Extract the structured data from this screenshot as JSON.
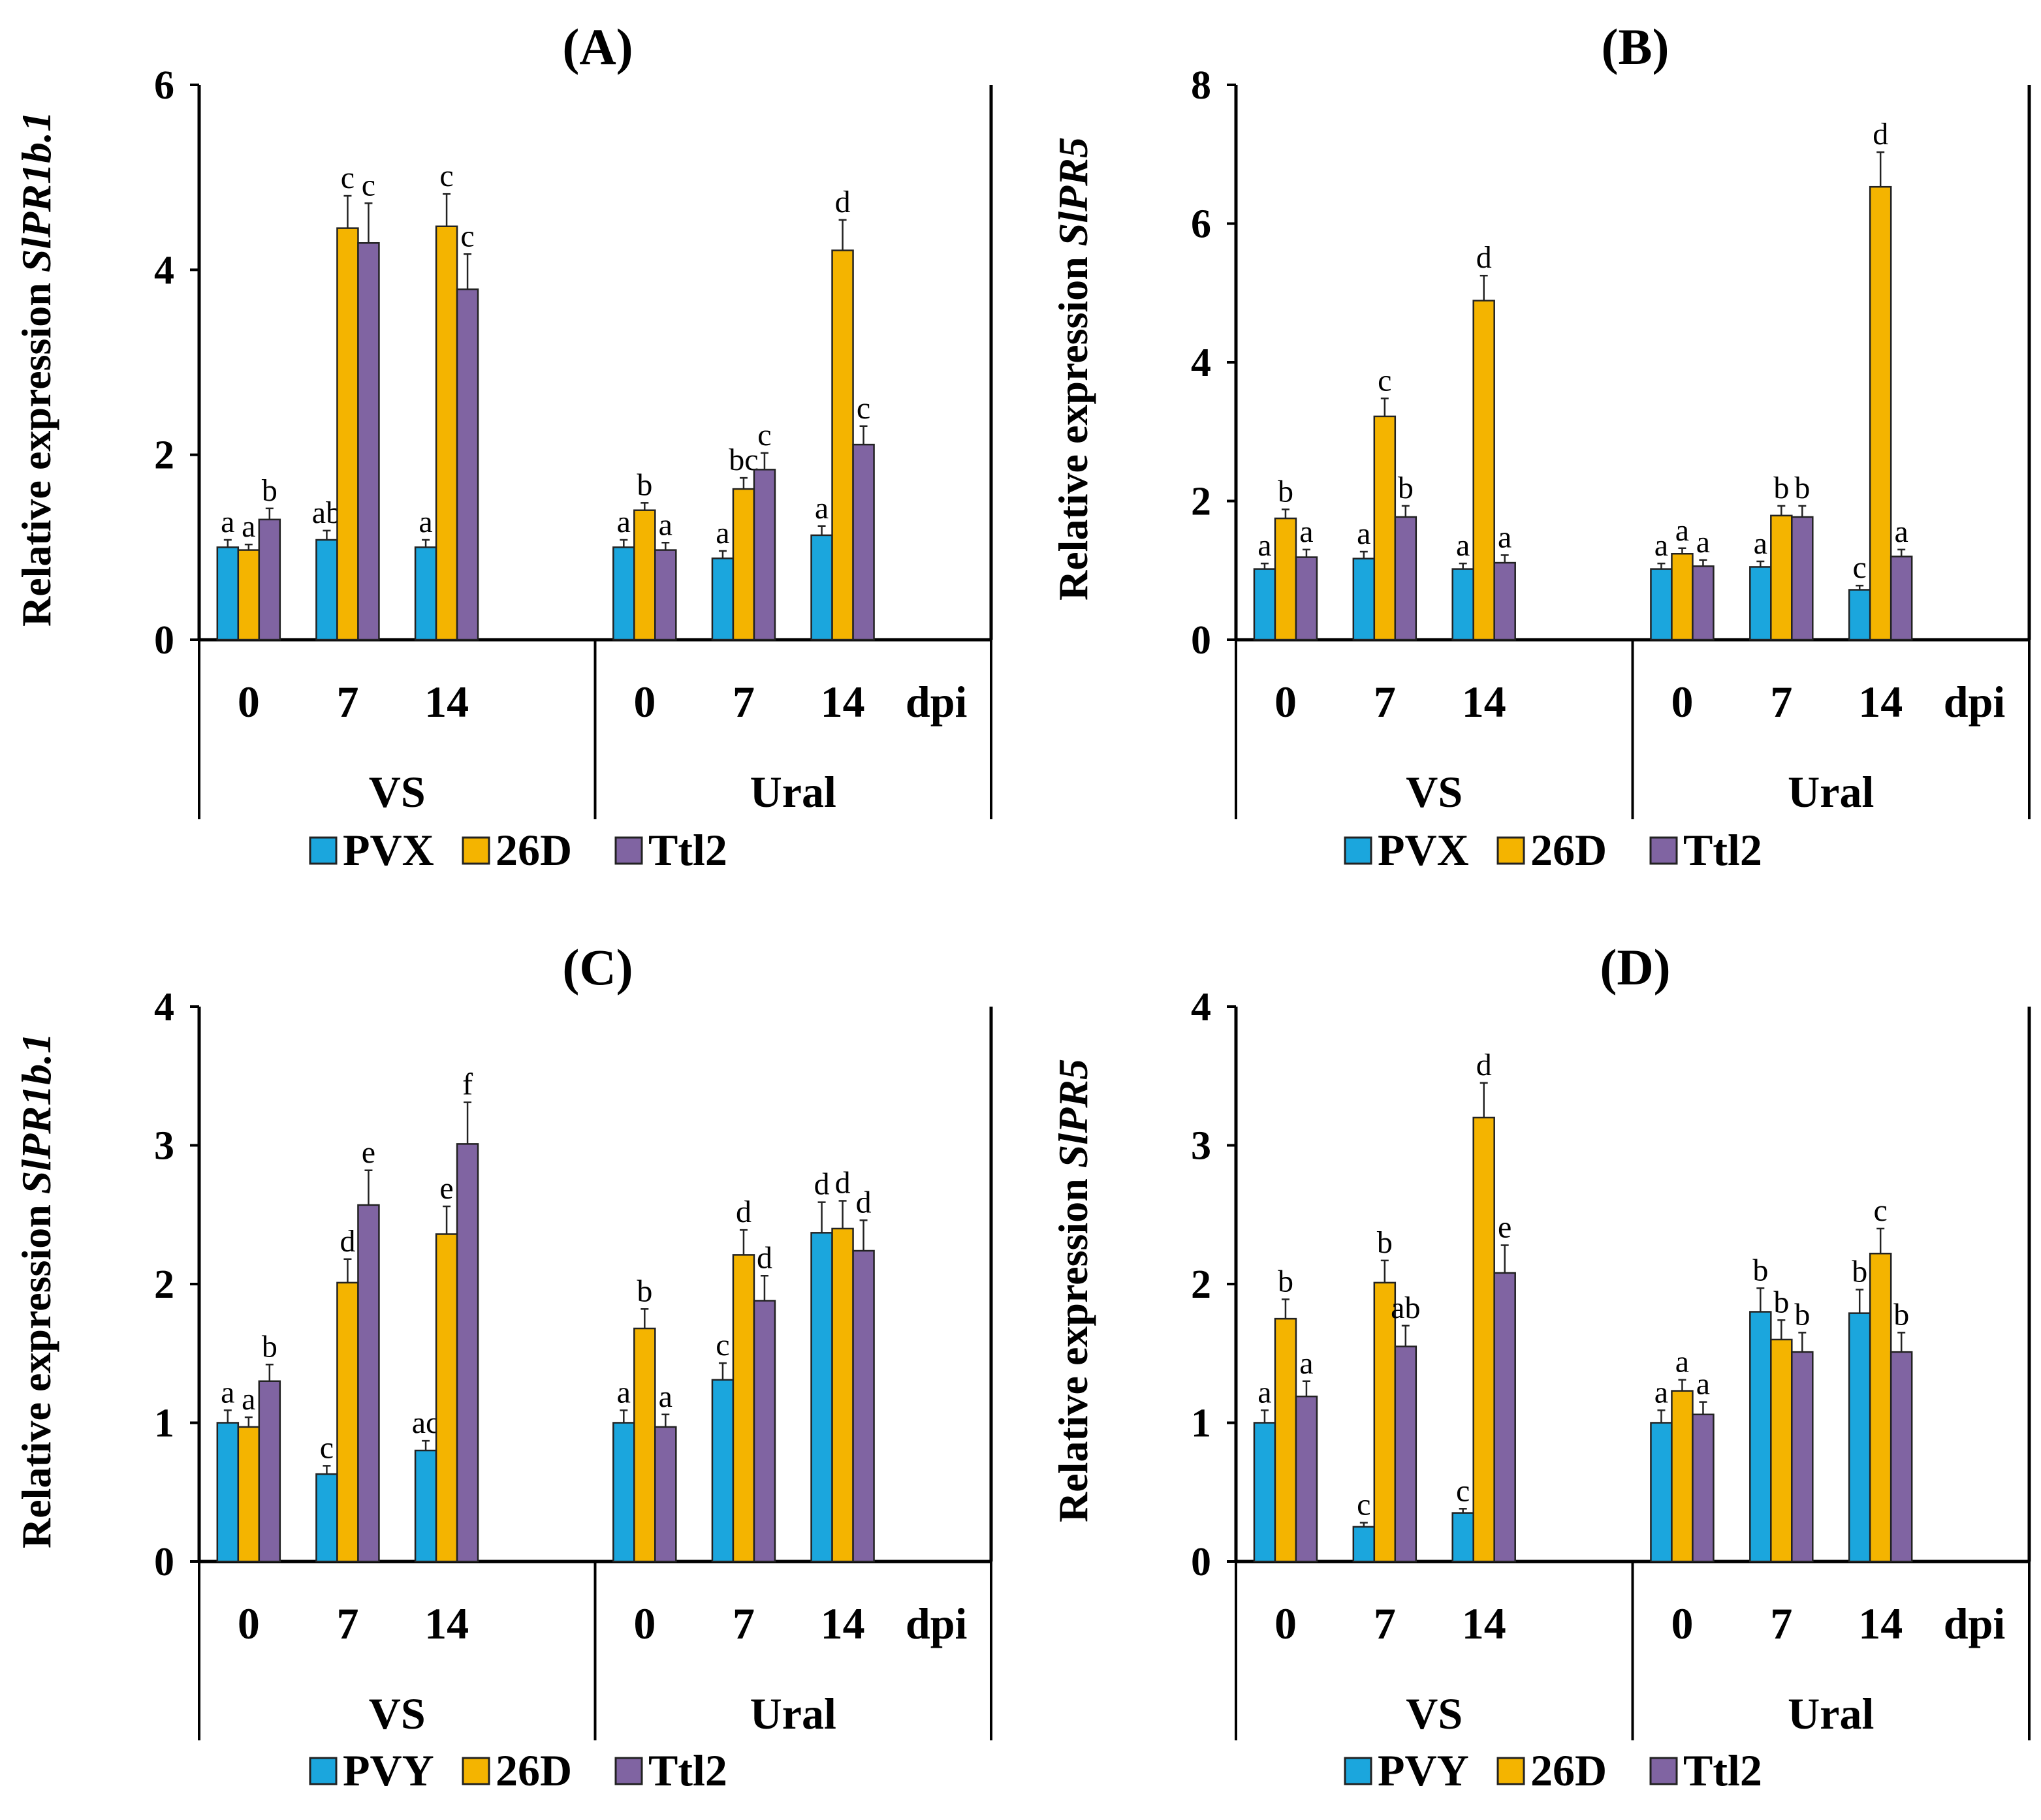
{
  "chart_data": [
    {
      "type": "bar",
      "panel": "(A)",
      "ylabel_prefix": "Relative expression ",
      "ylabel_gene": "SlPR1b.1",
      "ylim": [
        0,
        6
      ],
      "yticks": [
        "0",
        "2",
        "4",
        "6"
      ],
      "x_unit": "dpi",
      "groups": [
        {
          "name": "VS",
          "timepoints": [
            "0",
            "7",
            "14"
          ]
        },
        {
          "name": "Ural",
          "timepoints": [
            "0",
            "7",
            "14"
          ]
        }
      ],
      "series": [
        {
          "name": "PVX",
          "color": "#1ba6dd",
          "values": [
            1.0,
            1.08,
            1.0,
            1.0,
            0.88,
            1.13
          ],
          "errors": [
            0.08,
            0.1,
            0.08,
            0.08,
            0.08,
            0.1
          ],
          "letters": [
            "a",
            "ab",
            "a",
            "a",
            "a",
            "a"
          ]
        },
        {
          "name": "26D",
          "color": "#f4b400",
          "values": [
            0.97,
            4.45,
            4.47,
            1.4,
            1.63,
            4.21
          ],
          "errors": [
            0.06,
            0.35,
            0.35,
            0.08,
            0.12,
            0.33
          ],
          "letters": [
            "a",
            "c",
            "c",
            "b",
            "bc",
            "d"
          ]
        },
        {
          "name": "Ttl2",
          "color": "#8064a2",
          "values": [
            1.3,
            4.29,
            3.79,
            0.97,
            1.84,
            2.11
          ],
          "errors": [
            0.12,
            0.43,
            0.38,
            0.08,
            0.18,
            0.2
          ],
          "letters": [
            "b",
            "c",
            "c",
            "a",
            "c",
            "c"
          ]
        }
      ]
    },
    {
      "type": "bar",
      "panel": "(B)",
      "ylabel_prefix": "Relative expression ",
      "ylabel_gene": "SlPR5",
      "ylim": [
        0,
        8
      ],
      "yticks": [
        "0",
        "2",
        "4",
        "6",
        "8"
      ],
      "x_unit": "dpi",
      "groups": [
        {
          "name": "VS",
          "timepoints": [
            "0",
            "7",
            "14"
          ]
        },
        {
          "name": "Ural",
          "timepoints": [
            "0",
            "7",
            "14"
          ]
        }
      ],
      "series": [
        {
          "name": "PVX",
          "color": "#1ba6dd",
          "values": [
            1.02,
            1.17,
            1.02,
            1.02,
            1.05,
            0.72
          ],
          "errors": [
            0.08,
            0.1,
            0.08,
            0.08,
            0.08,
            0.06
          ],
          "letters": [
            "a",
            "a",
            "a",
            "a",
            "a",
            "c"
          ]
        },
        {
          "name": "26D",
          "color": "#f4b400",
          "values": [
            1.75,
            3.22,
            4.89,
            1.24,
            1.79,
            6.53
          ],
          "errors": [
            0.13,
            0.26,
            0.36,
            0.08,
            0.14,
            0.5
          ],
          "letters": [
            "b",
            "c",
            "d",
            "a",
            "b",
            "d"
          ]
        },
        {
          "name": "Ttl2",
          "color": "#8064a2",
          "values": [
            1.19,
            1.77,
            1.11,
            1.06,
            1.77,
            1.2
          ],
          "errors": [
            0.11,
            0.16,
            0.11,
            0.09,
            0.16,
            0.1
          ],
          "letters": [
            "a",
            "b",
            "a",
            "a",
            "b",
            "a"
          ]
        }
      ]
    },
    {
      "type": "bar",
      "panel": "(C)",
      "ylabel_prefix": "Relative expression ",
      "ylabel_gene": "SlPR1b.1",
      "ylim": [
        0,
        4
      ],
      "yticks": [
        "0",
        "1",
        "2",
        "3",
        "4"
      ],
      "x_unit": "dpi",
      "groups": [
        {
          "name": "VS",
          "timepoints": [
            "0",
            "7",
            "14"
          ]
        },
        {
          "name": "Ural",
          "timepoints": [
            "0",
            "7",
            "14"
          ]
        }
      ],
      "series": [
        {
          "name": "PVY",
          "color": "#1ba6dd",
          "values": [
            1.0,
            0.63,
            0.8,
            1.0,
            1.31,
            2.37
          ],
          "errors": [
            0.09,
            0.06,
            0.07,
            0.09,
            0.12,
            0.22
          ],
          "letters": [
            "a",
            "c",
            "ac",
            "a",
            "c",
            "d"
          ]
        },
        {
          "name": "26D",
          "color": "#f4b400",
          "values": [
            0.97,
            2.01,
            2.36,
            1.68,
            2.21,
            2.4
          ],
          "errors": [
            0.07,
            0.17,
            0.2,
            0.14,
            0.18,
            0.2
          ],
          "letters": [
            "a",
            "d",
            "e",
            "b",
            "d",
            "d"
          ]
        },
        {
          "name": "Ttl2",
          "color": "#8064a2",
          "values": [
            1.3,
            2.57,
            3.01,
            0.97,
            1.88,
            2.24
          ],
          "errors": [
            0.12,
            0.25,
            0.3,
            0.09,
            0.18,
            0.22
          ],
          "letters": [
            "b",
            "e",
            "f",
            "a",
            "d",
            "d"
          ]
        }
      ]
    },
    {
      "type": "bar",
      "panel": "(D)",
      "ylabel_prefix": "Relative expression ",
      "ylabel_gene": "SlPR5",
      "ylim": [
        0,
        4
      ],
      "yticks": [
        "0",
        "1",
        "2",
        "3",
        "4"
      ],
      "x_unit": "dpi",
      "groups": [
        {
          "name": "VS",
          "timepoints": [
            "0",
            "7",
            "14"
          ]
        },
        {
          "name": "Ural",
          "timepoints": [
            "0",
            "7",
            "14"
          ]
        }
      ],
      "series": [
        {
          "name": "PVY",
          "color": "#1ba6dd",
          "values": [
            1.0,
            0.25,
            0.35,
            1.0,
            1.8,
            1.79
          ],
          "errors": [
            0.09,
            0.03,
            0.03,
            0.09,
            0.17,
            0.17
          ],
          "letters": [
            "a",
            "c",
            "c",
            "a",
            "b",
            "b"
          ]
        },
        {
          "name": "26D",
          "color": "#f4b400",
          "values": [
            1.75,
            2.01,
            3.2,
            1.23,
            1.6,
            2.22
          ],
          "errors": [
            0.14,
            0.16,
            0.25,
            0.08,
            0.14,
            0.18
          ],
          "letters": [
            "b",
            "b",
            "d",
            "a",
            "b",
            "c"
          ]
        },
        {
          "name": "Ttl2",
          "color": "#8064a2",
          "values": [
            1.19,
            1.55,
            2.08,
            1.06,
            1.51,
            1.51
          ],
          "errors": [
            0.11,
            0.15,
            0.2,
            0.09,
            0.14,
            0.14
          ],
          "letters": [
            "a",
            "ab",
            "e",
            "a",
            "b",
            "b"
          ]
        }
      ]
    }
  ]
}
